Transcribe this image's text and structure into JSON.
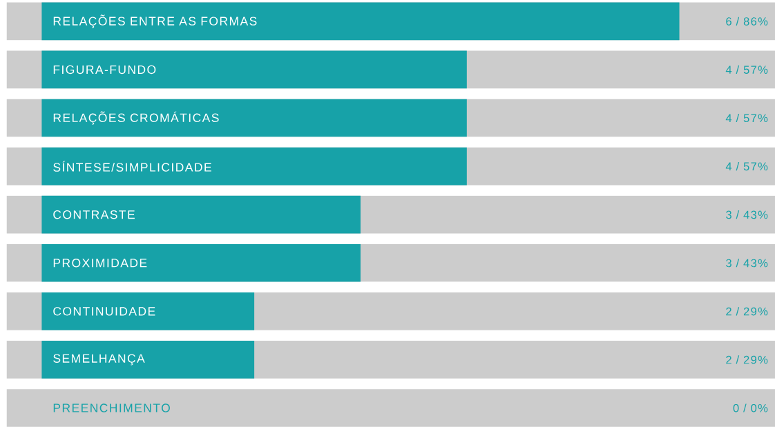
{
  "chart_data": {
    "type": "bar",
    "orientation": "horizontal",
    "categories": [
      "RELAÇÕES ENTRE AS FORMAS",
      "FIGURA-FUNDO",
      "RELAÇÕES CROMÁTICAS",
      "SÍNTESE/SIMPLICIDADE",
      "CONTRASTE",
      "PROXIMIDADE",
      "CONTINUIDADE",
      "SEMELHANÇA",
      "PREENCHIMENTO"
    ],
    "values": [
      6,
      4,
      4,
      4,
      3,
      3,
      2,
      2,
      0
    ],
    "value_labels": [
      "6 / 86%",
      "4 / 57%",
      "4 / 57%",
      "4 / 57%",
      "3 / 43%",
      "3 / 43%",
      "2 / 29%",
      "2 / 29%",
      "0 / 0%"
    ],
    "color": "#17a2a8"
  }
}
